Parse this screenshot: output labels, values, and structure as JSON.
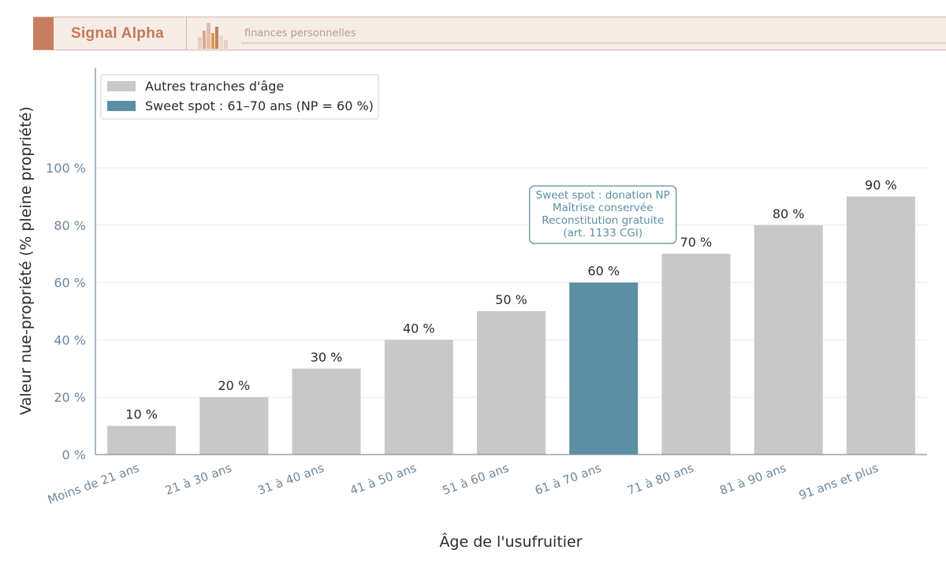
{
  "header": {
    "brand": "Signal Alpha",
    "tagline": "finances personnelles"
  },
  "colors": {
    "default_bar": "#c8c8c8",
    "highlight_bar": "#5b8fa3",
    "axis": "#7a92a8",
    "tick_text": "#6d879b",
    "brand_accent": "#c87d5e"
  },
  "chart_data": {
    "type": "bar",
    "categories": [
      "Moins de 21 ans",
      "21 à 30 ans",
      "31 à 40 ans",
      "41 à 50 ans",
      "51 à 60 ans",
      "61 à 70 ans",
      "71 à 80 ans",
      "81 à 90 ans",
      "91 ans et plus"
    ],
    "values": [
      10,
      20,
      30,
      40,
      50,
      60,
      70,
      80,
      90
    ],
    "value_labels": [
      "10 %",
      "20 %",
      "30 %",
      "40 %",
      "50 %",
      "60 %",
      "70 %",
      "80 %",
      "90 %"
    ],
    "highlight_category": "61 à 70 ans",
    "xlabel": "Âge de l'usufruitier",
    "ylabel": "Valeur nue-propriété (% pleine propriété)",
    "ylim": [
      0,
      135
    ],
    "yticks": [
      0,
      20,
      40,
      60,
      80,
      100
    ],
    "ytick_labels": [
      "0 %",
      "20 %",
      "40 %",
      "60 %",
      "80 %",
      "100 %"
    ],
    "grid": true,
    "legend": {
      "placement": "top-left",
      "entries": [
        {
          "label": "Autres tranches d'âge",
          "color": "#c8c8c8"
        },
        {
          "label": "Sweet spot : 61–70 ans (NP = 60 %)",
          "color": "#5b8fa3"
        }
      ]
    },
    "annotation": {
      "category": "61 à 70 ans",
      "lines": [
        "Sweet spot : donation NP",
        "Maîtrise conservée",
        "Reconstitution gratuite",
        "(art. 1133 CGI)"
      ]
    }
  }
}
